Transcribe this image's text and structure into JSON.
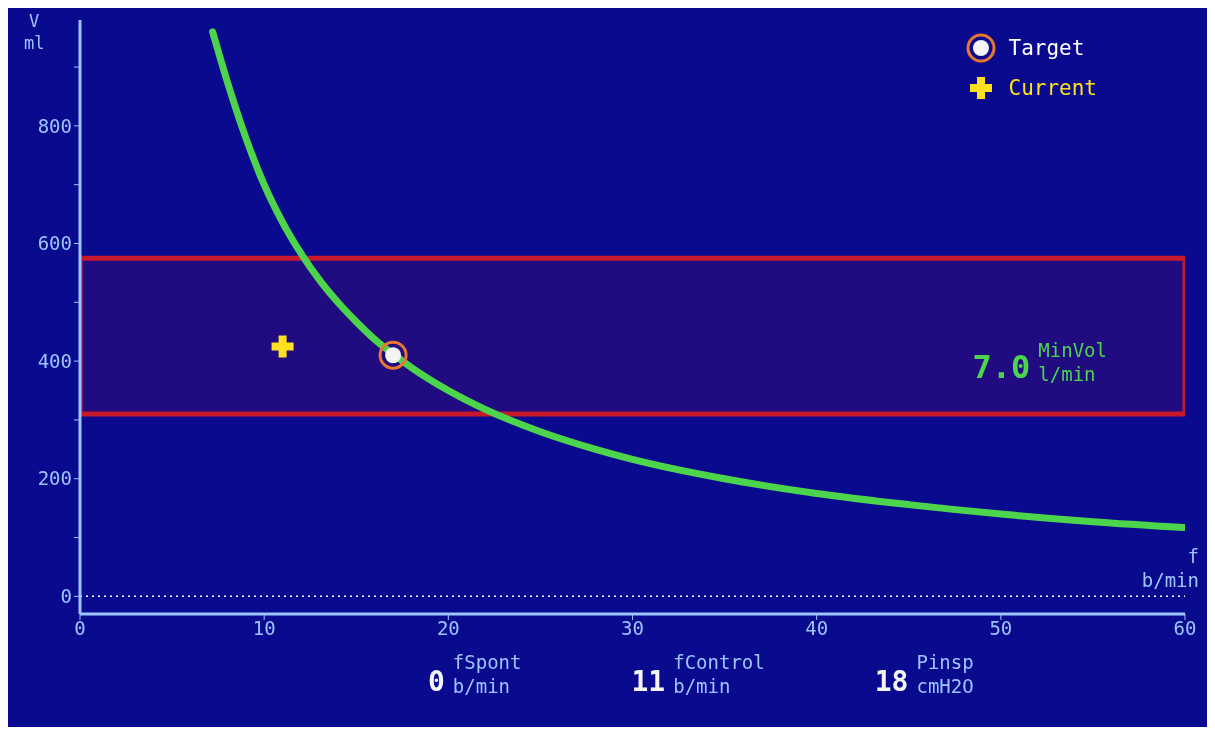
{
  "chart_data": {
    "type": "line",
    "xlabel": "f\nb/min",
    "ylabel": "V\nml",
    "xlim": [
      0,
      60
    ],
    "xticks": [
      0,
      10,
      20,
      30,
      40,
      50,
      60
    ],
    "ylim": [
      -30,
      980
    ],
    "yticks": [
      0,
      {
        "value": 100,
        "label": null
      },
      200,
      {
        "value": 300,
        "label": null
      },
      400,
      {
        "value": 500,
        "label": null
      },
      600,
      {
        "value": 700,
        "label": null
      },
      800,
      {
        "value": 900,
        "label": null
      }
    ],
    "series": [
      {
        "color": "#4cd44c",
        "marker": "none",
        "x": [
          7.2,
          8,
          9,
          10,
          11,
          12,
          13,
          14,
          15,
          16,
          17,
          18,
          20,
          22,
          25,
          28,
          30,
          35,
          40,
          45,
          50,
          55,
          60
        ],
        "values": [
          960,
          875,
          780,
          700,
          636,
          583,
          538,
          500,
          467,
          437,
          412,
          389,
          350,
          318,
          280,
          250,
          233,
          200,
          175,
          156,
          140,
          127,
          117
        ]
      },
      {
        "type": "scatter",
        "name": "Target",
        "color": "#f4f4f4",
        "marker": "circle",
        "x": [
          17
        ],
        "values": [
          410
        ]
      },
      {
        "type": "scatter",
        "name": "Current",
        "color": "#ffe020",
        "marker": "cross",
        "x": [
          11
        ],
        "values": [
          425
        ]
      }
    ],
    "bands": [
      {
        "axis": "y",
        "from": 310,
        "to": 575,
        "color": "#c8182c"
      }
    ],
    "ref_lines": [
      {
        "axis": "y",
        "value": 0,
        "color": "#ffffff",
        "line_style": "dotted"
      }
    ],
    "legend": "top right",
    "grid": false,
    "annotations": [
      "MinVol",
      "7.0",
      "l/min",
      "fSpont",
      "0",
      "b/min",
      "fControl",
      "11",
      "b/min",
      "Pinsp",
      "18",
      "cmH2O"
    ]
  }
}
